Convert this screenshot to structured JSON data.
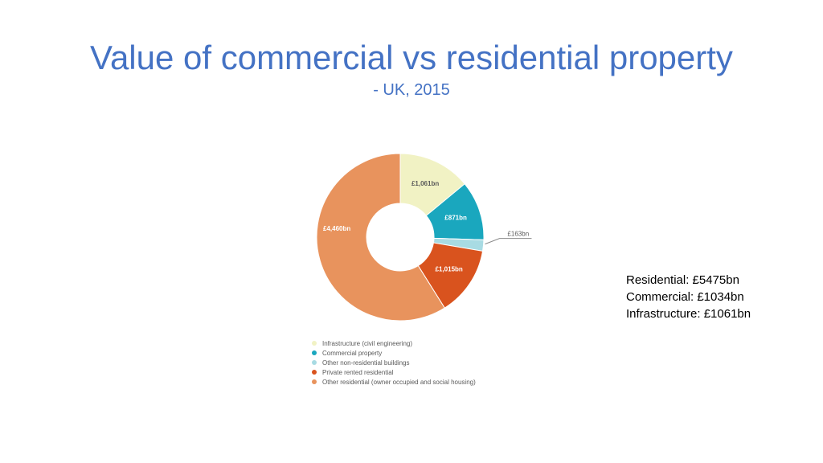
{
  "slide": {
    "title": "Value of commercial vs residential property",
    "subtitle": "- UK, 2015"
  },
  "chart_data": {
    "type": "pie",
    "title": "",
    "categories": [
      "Infrastructure (civil engineering)",
      "Commercial property",
      "Other non-residential buildings",
      "Private rented residential",
      "Other residential (owner occupied and social housing)"
    ],
    "values": [
      1061,
      871,
      163,
      1015,
      4460
    ],
    "data_labels": [
      "£1,061bn",
      "£871bn",
      "£163bn",
      "£1,015bn",
      "£4,460bn"
    ],
    "colors": [
      "#f1f2c4",
      "#1aa7be",
      "#a8dbe3",
      "#d9531e",
      "#e8935d"
    ],
    "unit": "£bn",
    "donut": true,
    "legend_position": "bottom-left"
  },
  "summary": {
    "residential": "Residential: £5475bn",
    "commercial": "Commercial: £1034bn",
    "infrastructure": "Infrastructure: £1061bn"
  }
}
